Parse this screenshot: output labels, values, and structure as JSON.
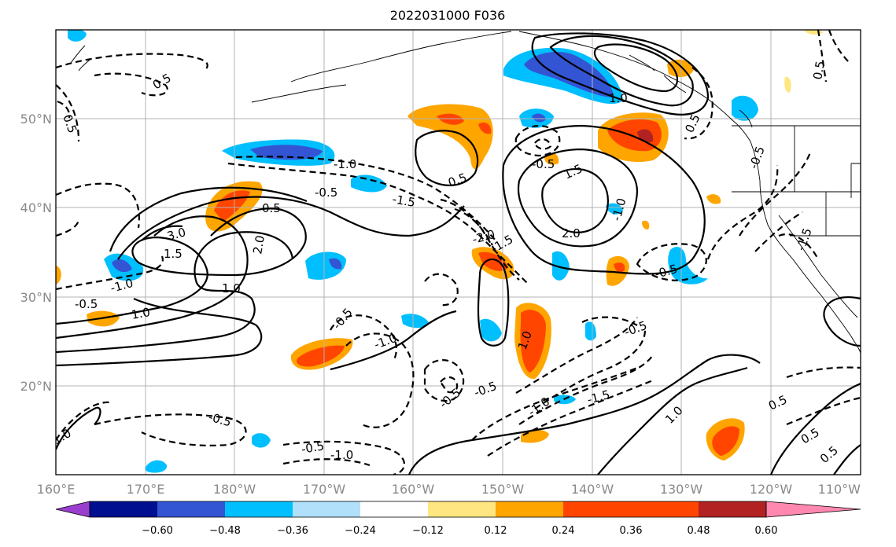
{
  "title": "2022031000 F036",
  "lat_labels": [
    "50°N",
    "40°N",
    "30°N",
    "20°N"
  ],
  "lon_labels": [
    "160°E",
    "170°E",
    "180°W",
    "170°W",
    "160°W",
    "150°W",
    "140°W",
    "130°W",
    "120°W",
    "110°W"
  ],
  "colorbar": {
    "ticks": [
      "−0.60",
      "−0.48",
      "−0.36",
      "−0.24",
      "−0.12",
      "0.12",
      "0.24",
      "0.36",
      "0.48",
      "0.60"
    ],
    "colors": [
      "#9a3ed0",
      "#000f8f",
      "#3355d4",
      "#00bfff",
      "#b0e0fa",
      "#ffffff",
      "#ffe680",
      "#ffa500",
      "#ff4500",
      "#b22222",
      "#ff88b0"
    ]
  },
  "contour_labels": [
    "0.5",
    "0.5",
    "0.5",
    "0.5",
    "0.5",
    "0.5",
    "0.5",
    "0.5",
    "0.5",
    "-0.5",
    "-0.5",
    "-0.5",
    "-0.5",
    "-0.5",
    "-0.5",
    "-0.5",
    "-0.5",
    "-0.5",
    "-0.5",
    "-0.5",
    "1.0",
    "1.0",
    "1.0",
    "1.0",
    "1.0",
    "1.0",
    "-1.0",
    "-1.0",
    "-1.0",
    "-1.0",
    "-1.0",
    "-1.0",
    "1.5",
    "1.5",
    "-1.5",
    "-1.5",
    "-1.5",
    "-1.5",
    "2.0",
    "2.0",
    "-2.0",
    "3.0"
  ]
}
